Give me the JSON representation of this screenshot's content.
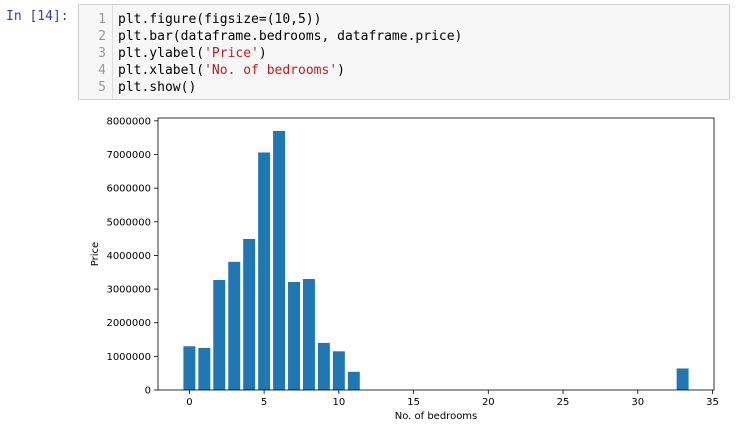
{
  "cell": {
    "prompt": "In [14]:",
    "code_lines": [
      {
        "num": "1",
        "text": "plt.figure(figsize=(10,5))",
        "parts": [
          {
            "t": "plt.figure(figsize=(10,5))",
            "s": false
          }
        ]
      },
      {
        "num": "2",
        "text": "plt.bar(dataframe.bedrooms, dataframe.price)",
        "parts": [
          {
            "t": "plt.bar(dataframe.bedrooms, dataframe.price)",
            "s": false
          }
        ]
      },
      {
        "num": "3",
        "text": "plt.ylabel('Price')",
        "parts": [
          {
            "t": "plt.ylabel(",
            "s": false
          },
          {
            "t": "'Price'",
            "s": true
          },
          {
            "t": ")",
            "s": false
          }
        ]
      },
      {
        "num": "4",
        "text": "plt.xlabel('No. of bedrooms')",
        "parts": [
          {
            "t": "plt.xlabel(",
            "s": false
          },
          {
            "t": "'No. of bedrooms'",
            "s": true
          },
          {
            "t": ")",
            "s": false
          }
        ]
      },
      {
        "num": "5",
        "text": "plt.show()",
        "parts": [
          {
            "t": "plt.show()",
            "s": false
          }
        ]
      }
    ]
  },
  "chart_data": {
    "type": "bar",
    "title": "",
    "xlabel": "No. of bedrooms",
    "ylabel": "Price",
    "x": [
      0,
      1,
      2,
      3,
      4,
      5,
      6,
      7,
      8,
      9,
      10,
      11,
      33
    ],
    "values": [
      1300000,
      1250000,
      3270000,
      3810000,
      4490000,
      7060000,
      7700000,
      3210000,
      3300000,
      1400000,
      1150000,
      540000,
      640000
    ],
    "xlim": [
      -2.1,
      35.1
    ],
    "ylim": [
      0,
      8085000
    ],
    "xticks": [
      0,
      5,
      10,
      15,
      20,
      25,
      30,
      35
    ],
    "xtick_labels": [
      "0",
      "5",
      "10",
      "15",
      "20",
      "25",
      "30",
      "35"
    ],
    "yticks": [
      0,
      1000000,
      2000000,
      3000000,
      4000000,
      5000000,
      6000000,
      7000000,
      8000000
    ],
    "ytick_labels": [
      "0",
      "1000000",
      "2000000",
      "3000000",
      "4000000",
      "5000000",
      "6000000",
      "7000000",
      "8000000"
    ],
    "bar_color": "#1f77b4",
    "grid": false,
    "legend": false
  }
}
